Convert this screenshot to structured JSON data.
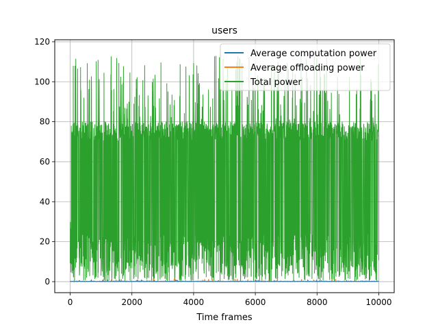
{
  "chart_data": {
    "type": "line",
    "title": "users",
    "xlabel": "Time frames",
    "ylabel": "",
    "xlim": [
      -500,
      10500
    ],
    "ylim": [
      -5.5,
      121
    ],
    "x_ticks": [
      0,
      2000,
      4000,
      6000,
      8000,
      10000
    ],
    "y_ticks": [
      0,
      20,
      40,
      60,
      80,
      100,
      120
    ],
    "grid": true,
    "legend_position": "top-right",
    "x_range": [
      0,
      10000
    ],
    "series": [
      {
        "name": "Average computation power",
        "color": "#1f77b4",
        "typical": 0.2,
        "max": 0.8,
        "min": 0
      },
      {
        "name": "Average offloading power",
        "color": "#ff7f0e",
        "typical": 0.4,
        "max": 1.5,
        "min": 0
      },
      {
        "name": "Total power",
        "color": "#2ca02c",
        "typical_band": [
          0,
          80
        ],
        "spikes_to": 113,
        "max": 113,
        "min": 0
      }
    ]
  }
}
